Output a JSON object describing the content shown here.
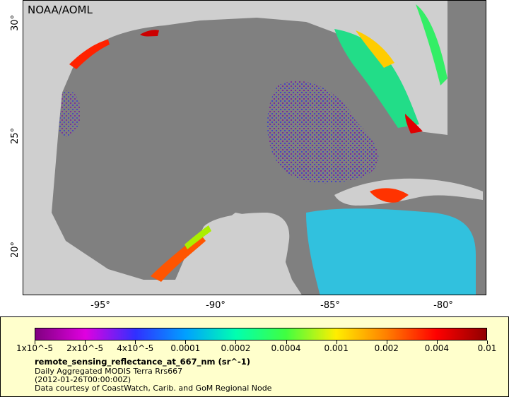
{
  "map": {
    "source_label": "NOAA/AOML",
    "lat_ticks": [
      {
        "label": "30°",
        "value": 30
      },
      {
        "label": "25°",
        "value": 25
      },
      {
        "label": "20°",
        "value": 20
      }
    ],
    "lon_ticks": [
      {
        "label": "-95°",
        "value": -95
      },
      {
        "label": "-90°",
        "value": -90
      },
      {
        "label": "-85°",
        "value": -85
      },
      {
        "label": "-80°",
        "value": -80
      }
    ],
    "extent": {
      "lon_min": -98,
      "lon_max": -78,
      "lat_min": 18,
      "lat_max": 31
    }
  },
  "legend": {
    "ticks": [
      "1x10^-5",
      "2x10^-5",
      "4x10^-5",
      "0.0001",
      "0.0002",
      "0.0004",
      "0.001",
      "0.002",
      "0.004",
      "0.01"
    ],
    "title": "remote_sensing_reflectance_at_667_nm (sr^-1)",
    "line2": "Daily Aggregated MODIS Terra Rrs667",
    "line3": "(2012-01-26T00:00:00Z)",
    "line4": "Data courtesy of CoastWatch, Carib. and GoM Regional Node",
    "colors": {
      "ocean": "#808080",
      "land": "#cfcfcf",
      "gradient": [
        "#800080",
        "#e000e0",
        "#3030ff",
        "#00a0ff",
        "#00ffb0",
        "#40ff40",
        "#ffee00",
        "#ff8000",
        "#ff0000",
        "#900000"
      ]
    }
  }
}
